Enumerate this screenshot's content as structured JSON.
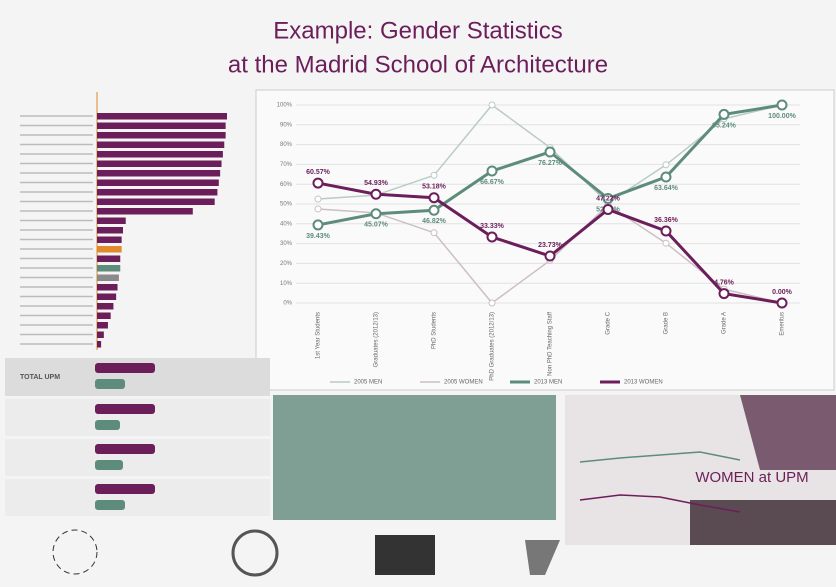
{
  "title_lines": [
    "Example: Gender Statistics",
    "at the Madrid School of Architecture"
  ],
  "chart_data": [
    {
      "type": "line",
      "categories": [
        "1st Year Students",
        "Graduates (2012/13)",
        "PhD Students",
        "PhD Graduates (2012/13)",
        "Non PhD Teaching Staff",
        "Grade C",
        "Grade B",
        "Grade A",
        "Emeritus"
      ],
      "ylim": [
        0,
        100
      ],
      "yticks": [
        {
          "value": 0,
          "label": "0%"
        },
        {
          "value": 10,
          "label": "10%"
        },
        {
          "value": 20,
          "label": "20%"
        },
        {
          "value": 30,
          "label": "30%"
        },
        {
          "value": 40,
          "label": "40%"
        },
        {
          "value": 50,
          "label": "50%"
        },
        {
          "value": 60,
          "label": "60%"
        },
        {
          "value": 70,
          "label": "70%"
        },
        {
          "value": 80,
          "label": "80%"
        },
        {
          "value": 90,
          "label": "90%"
        },
        {
          "value": 100,
          "label": "100%"
        }
      ],
      "grid": true,
      "legend": "bottom",
      "series": [
        {
          "name": "2005 MEN",
          "color": "#b9cbc3",
          "width": 1.5,
          "values": [
            52.5,
            54.5,
            64.5,
            100,
            78.5,
            50.5,
            69.8,
            93.0,
            100
          ]
        },
        {
          "name": "2005 WOMEN",
          "color": "#cdbdc6",
          "width": 1.5,
          "values": [
            47.5,
            45.5,
            35.5,
            0,
            21.5,
            49.5,
            30.2,
            7.0,
            0
          ]
        },
        {
          "name": "2013 MEN",
          "color": "#5e8c7c",
          "width": 3,
          "values": [
            39.43,
            45.07,
            46.82,
            66.67,
            76.27,
            52.78,
            63.64,
            95.24,
            100
          ],
          "value_labels": [
            "39.43%",
            "45.07%",
            "46.82%",
            "66.67%",
            "76.27%",
            "52.78%",
            "63.64%",
            "95.24%",
            "100.00%"
          ]
        },
        {
          "name": "2013 WOMEN",
          "color": "#6b1e5a",
          "width": 3,
          "values": [
            60.57,
            54.93,
            53.18,
            33.33,
            23.73,
            47.22,
            36.36,
            4.76,
            0
          ],
          "value_labels": [
            "60.57%",
            "54.93%",
            "53.18%",
            "33.33%",
            "23.73%",
            "47.22%",
            "36.36%",
            "4.76%",
            "0.00%"
          ]
        }
      ]
    },
    {
      "type": "hbar",
      "categories": [
        null,
        null,
        null,
        null,
        null,
        null,
        null,
        null,
        null,
        null,
        null,
        null,
        null,
        null,
        null,
        null,
        null,
        null,
        null,
        null,
        null,
        null,
        null,
        null,
        null
      ],
      "values": [
        9.5,
        9.4,
        9.4,
        9.3,
        9.2,
        9.1,
        9.0,
        8.9,
        8.8,
        8.6,
        7.0,
        2.1,
        1.9,
        1.8,
        1.8,
        1.7,
        1.7,
        1.6,
        1.5,
        1.4,
        1.2,
        1.0,
        0.8,
        0.5,
        0.3
      ],
      "colors": [
        "#6b1e5a",
        "#6b1e5a",
        "#6b1e5a",
        "#6b1e5a",
        "#6b1e5a",
        "#6b1e5a",
        "#6b1e5a",
        "#6b1e5a",
        "#6b1e5a",
        "#6b1e5a",
        "#6b1e5a",
        "#6b1e5a",
        "#6b1e5a",
        "#6b1e5a",
        "#e08a2c",
        "#6b1e5a",
        "#5e8c7c",
        "#8a8a8a",
        "#6b1e5a",
        "#6b1e5a",
        "#6b1e5a",
        "#6b1e5a",
        "#6b1e5a",
        "#6b1e5a",
        "#6b1e5a"
      ]
    }
  ],
  "panels": [
    "TOTAL UPM"
  ],
  "image_caption": "WOMEN at UPM"
}
